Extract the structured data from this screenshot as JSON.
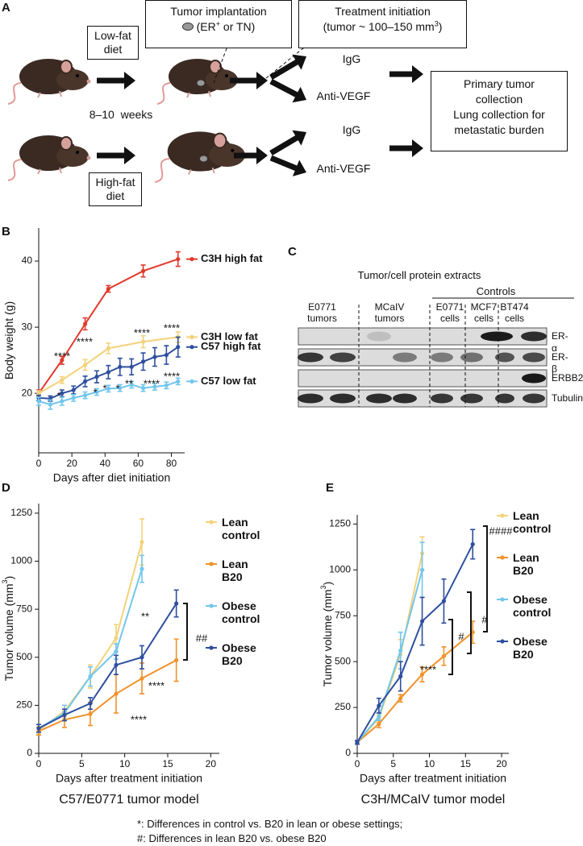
{
  "panel_labels": [
    "A",
    "B",
    "C",
    "D",
    "E"
  ],
  "diagram": {
    "low_fat": "Low-fat diet",
    "high_fat": "High-fat diet",
    "duration": "8–10  weeks",
    "implant": {
      "line1": "Tumor implantation",
      "line2": [
        "(ER",
        "+",
        " or TN)"
      ]
    },
    "treatment": {
      "line1": "Treatment initiation",
      "line2": [
        "(tumor ~ 100–150 mm",
        "3",
        ")"
      ]
    },
    "arms": [
      "IgG",
      "Anti-VEGF",
      "IgG",
      "Anti-VEGF"
    ],
    "outcome": [
      "Primary tumor",
      "collection",
      "Lung collection for",
      "metastatic burden"
    ]
  },
  "blot": {
    "title": "Tumor/cell protein extracts",
    "controls": "Controls",
    "groups": [
      "E0771 tumors",
      "MCaIV tumors",
      "E0771 cells",
      "MCF7 cells",
      "BT474 cells"
    ],
    "proteins": [
      "ER-α",
      "ER-β",
      "ERBB2",
      "Tubulin"
    ]
  },
  "chart_data": [
    {
      "type": "line",
      "xlabel": "Days after diet initiation",
      "ylabel": [
        "Body weight (g)"
      ],
      "xlim": [
        0,
        88
      ],
      "ylim": [
        11,
        45
      ],
      "xticks": [
        0,
        20,
        40,
        60,
        80
      ],
      "yticks": [
        20,
        30,
        40
      ],
      "legend": "line-end",
      "series": [
        {
          "name": "C3H high fat",
          "color": "#e0392c",
          "x": [
            0,
            14,
            28,
            42,
            63,
            84
          ],
          "values": [
            20,
            25,
            30.5,
            35.8,
            38.5,
            40.3
          ],
          "errors": [
            0.5,
            0.6,
            0.9,
            0.5,
            0.9,
            1.1
          ]
        },
        {
          "name": "C3H low fat",
          "color": "#f3d27a",
          "x": [
            0,
            14,
            28,
            42,
            63,
            84
          ],
          "values": [
            20,
            22,
            24.3,
            26.8,
            27.8,
            28.5
          ],
          "errors": [
            0.4,
            0.5,
            0.8,
            0.8,
            0.9,
            0.8
          ]
        },
        {
          "name": "C57 high fat",
          "color": "#2f4f9e",
          "x": [
            0,
            7,
            14,
            21,
            28,
            35,
            42,
            49,
            56,
            63,
            70,
            77,
            84
          ],
          "values": [
            19.3,
            19.2,
            20,
            20.5,
            21.8,
            22.5,
            23.2,
            24,
            24,
            24.8,
            25.5,
            25.8,
            27
          ],
          "errors": [
            0.4,
            0.4,
            0.5,
            0.6,
            0.8,
            0.9,
            1.0,
            1.3,
            1.2,
            1.3,
            1.4,
            1.4,
            1.5
          ]
        },
        {
          "name": "C57 low fat",
          "color": "#72c6ec",
          "x": [
            0,
            7,
            14,
            21,
            28,
            35,
            42,
            49,
            56,
            63,
            70,
            77,
            84
          ],
          "values": [
            18.8,
            18.3,
            18.8,
            19.3,
            19.7,
            20.2,
            20.7,
            20.8,
            21.3,
            20.8,
            21,
            21.2,
            21.8
          ],
          "errors": [
            0.6,
            0.7,
            0.6,
            0.5,
            0.5,
            0.5,
            0.5,
            0.5,
            0.5,
            0.5,
            0.5,
            0.5,
            0.5
          ]
        }
      ],
      "annotations": [
        "****",
        "****",
        "****",
        "****",
        "*",
        "*",
        "*",
        "*",
        "**",
        "****",
        "****"
      ]
    },
    {
      "type": "line",
      "xlabel": "Days after treatment initiation",
      "subtitle": "C57/E0771 tumor model",
      "ylabel": [
        "Tumor volume (mm",
        "3",
        ")"
      ],
      "xlim": [
        0,
        21
      ],
      "ylim": [
        0,
        1300
      ],
      "xticks": [
        0,
        5,
        10,
        15,
        20
      ],
      "yticks": [
        0,
        250,
        500,
        750,
        1000,
        1250
      ],
      "legend": "right",
      "series": [
        {
          "name": "Lean control",
          "color": "#f3d27a",
          "x": [
            0,
            3,
            6,
            9,
            12
          ],
          "values": [
            120,
            220,
            400,
            600,
            1100
          ],
          "errors": [
            20,
            30,
            60,
            70,
            120
          ]
        },
        {
          "name": "Lean B20",
          "color": "#f0922b",
          "x": [
            0,
            3,
            6,
            9,
            12,
            16
          ],
          "values": [
            115,
            175,
            205,
            310,
            390,
            485
          ],
          "errors": [
            20,
            40,
            60,
            100,
            80,
            110
          ]
        },
        {
          "name": "Obese control",
          "color": "#72c6ec",
          "x": [
            0,
            3,
            6,
            9,
            12
          ],
          "values": [
            130,
            210,
            400,
            530,
            960
          ],
          "errors": [
            20,
            40,
            50,
            40,
            70
          ]
        },
        {
          "name": "Obese B20",
          "color": "#2f4f9e",
          "x": [
            0,
            3,
            6,
            9,
            12,
            16
          ],
          "values": [
            130,
            200,
            260,
            460,
            500,
            780
          ],
          "errors": [
            20,
            30,
            30,
            50,
            60,
            70
          ]
        }
      ],
      "annotations": [
        "**",
        "****",
        "****",
        "##"
      ]
    },
    {
      "type": "line",
      "xlabel": "Days after treatment initiation",
      "subtitle": "C3H/MCaIV tumor model",
      "ylabel": [
        "Tumor volume (mm",
        "3",
        ")"
      ],
      "xlim": [
        0,
        21
      ],
      "ylim": [
        0,
        1300
      ],
      "xticks": [
        0,
        5,
        10,
        15,
        20
      ],
      "yticks": [
        0,
        250,
        500,
        750,
        1000,
        1250
      ],
      "legend": "right",
      "series": [
        {
          "name": "Lean control",
          "color": "#f3d27a",
          "x": [
            0,
            3,
            6,
            9
          ],
          "values": [
            60,
            190,
            540,
            1090
          ],
          "errors": [
            10,
            20,
            80,
            90
          ]
        },
        {
          "name": "Lean B20",
          "color": "#f0922b",
          "x": [
            0,
            3,
            6,
            9,
            12,
            16
          ],
          "values": [
            60,
            160,
            300,
            430,
            530,
            660
          ],
          "errors": [
            10,
            20,
            20,
            40,
            50,
            60
          ]
        },
        {
          "name": "Obese control",
          "color": "#72c6ec",
          "x": [
            0,
            3,
            6,
            9
          ],
          "values": [
            60,
            200,
            560,
            1000
          ],
          "errors": [
            10,
            20,
            100,
            150
          ]
        },
        {
          "name": "Obese B20",
          "color": "#2f4f9e",
          "x": [
            0,
            3,
            6,
            9,
            12,
            16
          ],
          "values": [
            60,
            260,
            420,
            720,
            830,
            1140
          ],
          "errors": [
            10,
            40,
            80,
            130,
            120,
            80
          ]
        }
      ],
      "annotations": [
        "****",
        "#",
        "#",
        "####"
      ]
    }
  ],
  "footnotes": [
    "*: Differences in control vs. B20 in lean or obese settings;",
    "#: Differences in lean B20 vs. obese B20"
  ]
}
